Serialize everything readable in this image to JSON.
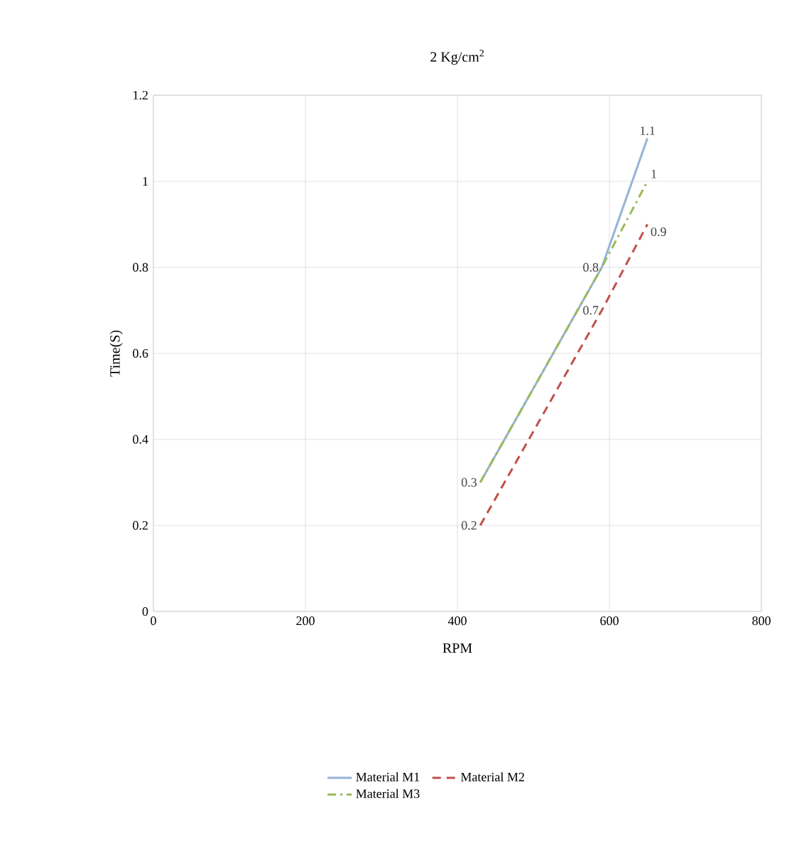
{
  "chart_data": {
    "type": "line",
    "title": "2 Kg/cm$^{2}$",
    "xlabel": "RPM",
    "ylabel": "Time(S)",
    "x": [
      430,
      590,
      650
    ],
    "series": [
      {
        "name": "Material M1",
        "color": "#95b3d7",
        "line_style": "solid",
        "values": [
          0.3,
          0.8,
          1.1
        ],
        "value_labels": [
          "0.3",
          "0.8",
          "1.1"
        ]
      },
      {
        "name": "Material M2",
        "color": "#c0504d",
        "line_style": "dashed",
        "values": [
          0.2,
          0.7,
          0.9
        ],
        "value_labels": [
          "0.2",
          "0.7",
          "0.9"
        ]
      },
      {
        "name": "Material M3",
        "color": "#9bbb59",
        "line_style": "dashdot",
        "values": [
          0.3,
          0.8,
          1
        ],
        "value_labels": [
          null,
          null,
          "1"
        ]
      }
    ],
    "xlim": [
      0,
      800
    ],
    "xticks": [
      0,
      200,
      400,
      600,
      800
    ],
    "ylim": [
      0,
      1.2
    ],
    "yticks": [
      0,
      0.2,
      0.4,
      0.6,
      0.8,
      1,
      1.2
    ],
    "grid": true,
    "legend": "bottom",
    "marker": "none"
  }
}
